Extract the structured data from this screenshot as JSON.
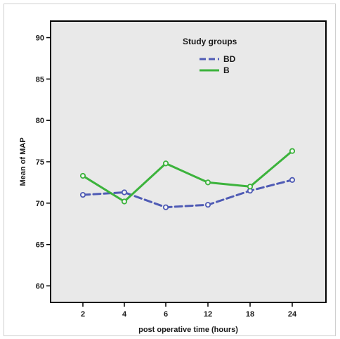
{
  "chart_data": {
    "type": "line",
    "title": "",
    "xlabel": "post operative time (hours)",
    "ylabel": "Mean of MAP",
    "categories": [
      "2",
      "4",
      "6",
      "12",
      "18",
      "24"
    ],
    "ylim": [
      58,
      92
    ],
    "yticks": [
      60,
      65,
      70,
      75,
      80,
      85,
      90
    ],
    "grid": false,
    "legend": {
      "title": "Study groups",
      "placement": "top-center"
    },
    "series": [
      {
        "name": "BD",
        "color": "#4f5bb5",
        "style": "dashed",
        "values": [
          71.0,
          71.3,
          69.5,
          69.8,
          71.5,
          72.8
        ]
      },
      {
        "name": "B",
        "color": "#3cb33c",
        "style": "solid",
        "values": [
          73.3,
          70.2,
          74.8,
          72.5,
          72.0,
          76.3
        ]
      }
    ],
    "background": "#e9e9e9"
  }
}
